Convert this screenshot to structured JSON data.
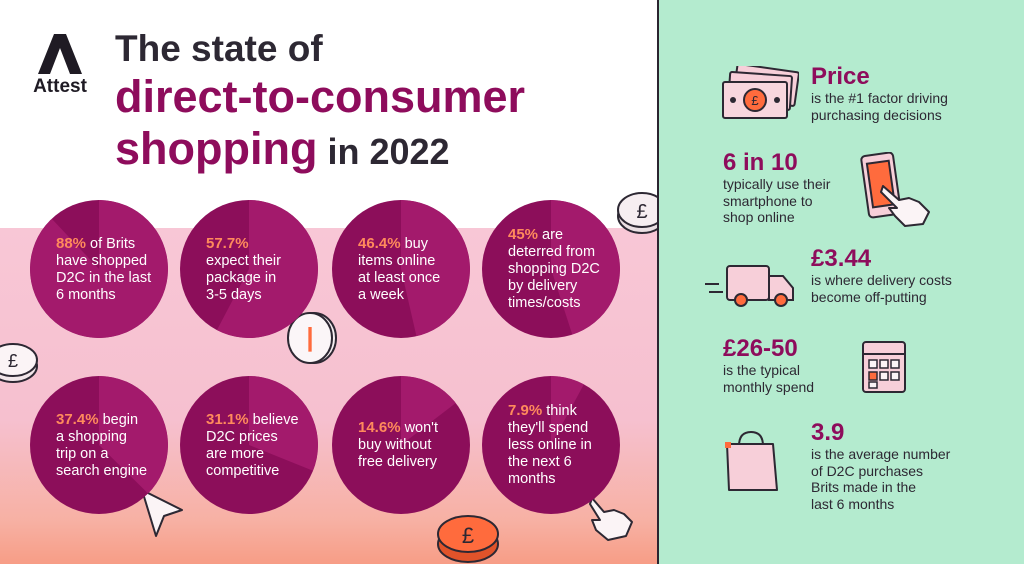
{
  "brand": {
    "name": "Attest"
  },
  "title": {
    "line1": "The state of",
    "line2": "direct-to-consumer",
    "line3": "shopping",
    "line3_suffix": " in 2022"
  },
  "stats": [
    {
      "stat": "88%",
      "rest": " of Brits",
      "lines": [
        "have shopped",
        "D2C in the last",
        "6 months"
      ],
      "value_pct": 88
    },
    {
      "stat": "57.7%",
      "rest": "",
      "lines": [
        "expect their",
        "package in",
        "3-5 days"
      ],
      "value_pct": 57.7
    },
    {
      "stat": "46.4%",
      "rest": " buy",
      "lines": [
        "items online",
        "at least once",
        "a week"
      ],
      "value_pct": 46.4
    },
    {
      "stat": "45%",
      "rest": " are",
      "lines": [
        "deterred from",
        "shopping D2C",
        "by delivery",
        "times/costs"
      ],
      "value_pct": 45
    },
    {
      "stat": "37.4%",
      "rest": " begin",
      "lines": [
        "a shopping",
        "trip on a",
        "search engine"
      ],
      "value_pct": 37.4
    },
    {
      "stat": "31.1%",
      "rest": " believe",
      "lines": [
        "D2C prices",
        "are more",
        "competitive"
      ],
      "value_pct": 31.1
    },
    {
      "stat": "14.6%",
      "rest": " won't",
      "lines": [
        "buy without",
        "free delivery"
      ],
      "value_pct": 14.6
    },
    {
      "stat": "7.9%",
      "rest": " think",
      "lines": [
        "they'll spend",
        "less online in",
        "the next 6",
        "months"
      ],
      "value_pct": 7.9
    }
  ],
  "facts": [
    {
      "head": "Price",
      "lines": [
        "is the #1 factor driving",
        "purchasing decisions"
      ],
      "icon": "banknotes-icon"
    },
    {
      "head": "6 in 10",
      "lines": [
        "typically use their",
        "smartphone to",
        "shop online"
      ],
      "icon": "smartphone-tap-icon"
    },
    {
      "head": "£3.44",
      "lines": [
        "is where delivery costs",
        "become off-putting"
      ],
      "icon": "delivery-truck-icon"
    },
    {
      "head": "£26-50",
      "lines": [
        "is the typical",
        "monthly spend"
      ],
      "icon": "calendar-icon"
    },
    {
      "head": "3.9",
      "lines": [
        "is the average number",
        "of D2C purchases",
        "Brits made in the",
        "last 6 months"
      ],
      "icon": "shopping-bag-icon"
    }
  ],
  "colors": {
    "plum": "#8c0e5a",
    "plum_light": "#a31a6c",
    "accent": "#ff8a5c",
    "pink_bg": "#f8c7d6",
    "mint_bg": "#b4ebcf",
    "dark": "#2d2833"
  },
  "decor_symbols": {
    "pound": "£",
    "pipe": "|"
  }
}
